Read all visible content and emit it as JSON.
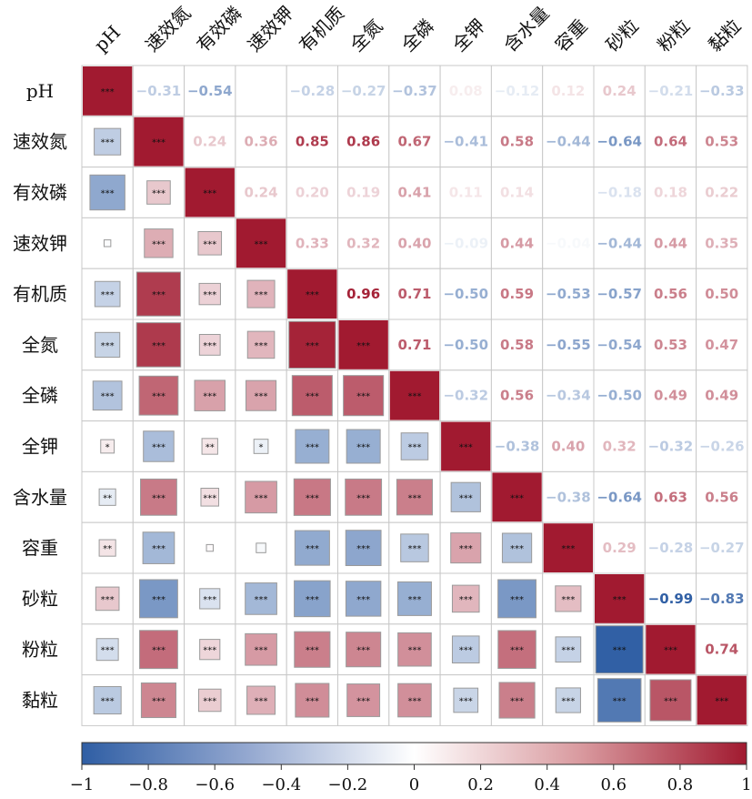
{
  "chart_data": {
    "type": "heatmap",
    "variables": [
      "pH",
      "速效氮",
      "有效磷",
      "速效钾",
      "有机质",
      "全氮",
      "全磷",
      "全钾",
      "含水量",
      "容重",
      "砂粒",
      "粉粒",
      "黏粒"
    ],
    "upper_coefficients": [
      [
        null,
        -0.31,
        -0.54,
        null,
        -0.28,
        -0.27,
        -0.37,
        0.08,
        -0.12,
        0.12,
        0.24,
        -0.21,
        -0.33
      ],
      [
        null,
        null,
        0.24,
        0.36,
        0.85,
        0.86,
        0.67,
        -0.41,
        0.58,
        -0.44,
        -0.64,
        0.64,
        0.53
      ],
      [
        null,
        null,
        null,
        0.24,
        0.2,
        0.19,
        0.41,
        0.11,
        0.14,
        null,
        -0.18,
        0.18,
        0.22
      ],
      [
        null,
        null,
        null,
        null,
        0.33,
        0.32,
        0.4,
        -0.09,
        0.44,
        -0.04,
        -0.44,
        0.44,
        0.35
      ],
      [
        null,
        null,
        null,
        null,
        null,
        0.96,
        0.71,
        -0.5,
        0.59,
        -0.53,
        -0.57,
        0.56,
        0.5
      ],
      [
        null,
        null,
        null,
        null,
        null,
        null,
        0.71,
        -0.5,
        0.58,
        -0.55,
        -0.54,
        0.53,
        0.47
      ],
      [
        null,
        null,
        null,
        null,
        null,
        null,
        null,
        -0.32,
        0.56,
        -0.34,
        -0.5,
        0.49,
        0.49
      ],
      [
        null,
        null,
        null,
        null,
        null,
        null,
        null,
        null,
        -0.38,
        0.4,
        0.32,
        -0.32,
        -0.26
      ],
      [
        null,
        null,
        null,
        null,
        null,
        null,
        null,
        null,
        null,
        -0.38,
        -0.64,
        0.63,
        0.56
      ],
      [
        null,
        null,
        null,
        null,
        null,
        null,
        null,
        null,
        null,
        null,
        0.29,
        -0.28,
        -0.27
      ],
      [
        null,
        null,
        null,
        null,
        null,
        null,
        null,
        null,
        null,
        null,
        null,
        -0.99,
        -0.83
      ],
      [
        null,
        null,
        null,
        null,
        null,
        null,
        null,
        null,
        null,
        null,
        null,
        null,
        0.74
      ],
      [
        null,
        null,
        null,
        null,
        null,
        null,
        null,
        null,
        null,
        null,
        null,
        null,
        null
      ]
    ],
    "lower_values": [
      [
        null,
        null,
        null,
        null,
        null,
        null,
        null,
        null,
        null,
        null,
        null,
        null,
        null
      ],
      [
        -0.31,
        null,
        null,
        null,
        null,
        null,
        null,
        null,
        null,
        null,
        null,
        null,
        null
      ],
      [
        -0.54,
        0.24,
        null,
        null,
        null,
        null,
        null,
        null,
        null,
        null,
        null,
        null,
        null
      ],
      [
        -0.02,
        0.36,
        0.24,
        null,
        null,
        null,
        null,
        null,
        null,
        null,
        null,
        null,
        null
      ],
      [
        -0.28,
        0.85,
        0.2,
        0.33,
        null,
        null,
        null,
        null,
        null,
        null,
        null,
        null,
        null
      ],
      [
        -0.27,
        0.86,
        0.19,
        0.32,
        0.96,
        null,
        null,
        null,
        null,
        null,
        null,
        null,
        null
      ],
      [
        -0.37,
        0.67,
        0.41,
        0.4,
        0.71,
        0.71,
        null,
        null,
        null,
        null,
        null,
        null,
        null
      ],
      [
        0.08,
        -0.41,
        0.11,
        -0.09,
        -0.5,
        -0.5,
        -0.32,
        null,
        null,
        null,
        null,
        null,
        null
      ],
      [
        -0.12,
        0.58,
        0.14,
        0.44,
        0.59,
        0.58,
        0.56,
        -0.38,
        null,
        null,
        null,
        null,
        null
      ],
      [
        0.12,
        -0.44,
        0.02,
        -0.04,
        -0.53,
        -0.55,
        -0.34,
        0.4,
        -0.38,
        null,
        null,
        null,
        null
      ],
      [
        0.24,
        -0.64,
        -0.18,
        -0.44,
        -0.57,
        -0.54,
        -0.5,
        0.32,
        -0.64,
        0.29,
        null,
        null,
        null
      ],
      [
        -0.21,
        0.64,
        0.18,
        0.44,
        0.56,
        0.53,
        0.49,
        -0.32,
        0.63,
        -0.28,
        -0.99,
        null,
        null
      ],
      [
        -0.33,
        0.53,
        0.22,
        0.35,
        0.5,
        0.47,
        0.49,
        -0.26,
        0.56,
        -0.27,
        -0.83,
        0.74,
        null
      ]
    ],
    "significance": [
      [
        "***",
        "",
        "",
        "",
        "",
        "",
        "",
        "",
        "",
        "",
        "",
        "",
        ""
      ],
      [
        "***",
        "***",
        "",
        "",
        "",
        "",
        "",
        "",
        "",
        "",
        "",
        "",
        ""
      ],
      [
        "***",
        "***",
        "***",
        "",
        "",
        "",
        "",
        "",
        "",
        "",
        "",
        "",
        ""
      ],
      [
        "",
        "***",
        "***",
        "***",
        "",
        "",
        "",
        "",
        "",
        "",
        "",
        "",
        ""
      ],
      [
        "***",
        "***",
        "***",
        "***",
        "***",
        "",
        "",
        "",
        "",
        "",
        "",
        "",
        ""
      ],
      [
        "***",
        "***",
        "***",
        "***",
        "***",
        "***",
        "",
        "",
        "",
        "",
        "",
        "",
        ""
      ],
      [
        "***",
        "***",
        "***",
        "***",
        "***",
        "***",
        "***",
        "",
        "",
        "",
        "",
        "",
        ""
      ],
      [
        "*",
        "***",
        "**",
        "*",
        "***",
        "***",
        "***",
        "***",
        "",
        "",
        "",
        "",
        ""
      ],
      [
        "**",
        "***",
        "***",
        "***",
        "***",
        "***",
        "***",
        "***",
        "***",
        "",
        "",
        "",
        ""
      ],
      [
        "**",
        "***",
        "",
        "",
        "***",
        "***",
        "***",
        "***",
        "***",
        "***",
        "",
        "",
        ""
      ],
      [
        "***",
        "***",
        "***",
        "***",
        "***",
        "***",
        "***",
        "***",
        "***",
        "***",
        "***",
        "",
        ""
      ],
      [
        "***",
        "***",
        "***",
        "***",
        "***",
        "***",
        "***",
        "***",
        "***",
        "***",
        "***",
        "***",
        ""
      ],
      [
        "***",
        "***",
        "***",
        "***",
        "***",
        "***",
        "***",
        "***",
        "***",
        "***",
        "***",
        "***",
        "***"
      ]
    ],
    "colorbar": {
      "range": [
        -1,
        1
      ],
      "ticks": [
        "−1",
        "−0.8",
        "−0.6",
        "−0.4",
        "−0.2",
        "0",
        "0.2",
        "0.4",
        "0.6",
        "0.8",
        "1"
      ],
      "colors": {
        "negative": "#2f5ea4",
        "neutral": "#ffffff",
        "positive": "#a11a30"
      }
    }
  }
}
